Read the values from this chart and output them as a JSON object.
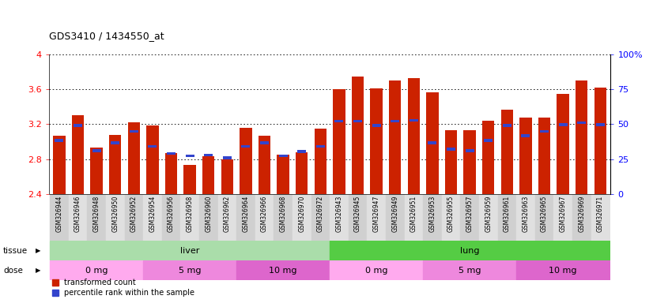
{
  "title": "GDS3410 / 1434550_at",
  "samples": [
    "GSM326944",
    "GSM326946",
    "GSM326948",
    "GSM326950",
    "GSM326952",
    "GSM326954",
    "GSM326956",
    "GSM326958",
    "GSM326960",
    "GSM326962",
    "GSM326964",
    "GSM326966",
    "GSM326968",
    "GSM326970",
    "GSM326972",
    "GSM326943",
    "GSM326945",
    "GSM326947",
    "GSM326949",
    "GSM326951",
    "GSM326953",
    "GSM326955",
    "GSM326957",
    "GSM326959",
    "GSM326961",
    "GSM326963",
    "GSM326965",
    "GSM326967",
    "GSM326969",
    "GSM326971"
  ],
  "red_values": [
    3.07,
    3.3,
    2.93,
    3.08,
    3.22,
    3.19,
    2.87,
    2.73,
    2.83,
    2.8,
    3.16,
    3.07,
    2.85,
    2.88,
    3.15,
    3.6,
    3.75,
    3.61,
    3.7,
    3.73,
    3.57,
    3.13,
    3.13,
    3.24,
    3.37,
    3.28,
    3.28,
    3.55,
    3.7,
    3.62
  ],
  "blue_values": [
    3.0,
    3.17,
    2.88,
    2.97,
    3.1,
    2.93,
    2.85,
    2.82,
    2.83,
    2.8,
    2.93,
    2.97,
    2.82,
    2.87,
    2.93,
    3.22,
    3.22,
    3.17,
    3.22,
    3.23,
    2.97,
    2.9,
    2.88,
    3.0,
    3.17,
    3.05,
    3.1,
    3.18,
    3.2,
    3.18
  ],
  "ymin": 2.4,
  "ymax": 4.0,
  "yticks": [
    2.4,
    2.8,
    3.2,
    3.6,
    4.0
  ],
  "ytick_labels": [
    "2.4",
    "2.8",
    "3.2",
    "3.6",
    "4"
  ],
  "right_yticks": [
    0,
    25,
    50,
    75,
    100
  ],
  "right_ytick_labels": [
    "0",
    "25",
    "50",
    "75",
    "100%"
  ],
  "bar_color": "#cc2200",
  "blue_color": "#3344cc",
  "tissue_groups": [
    {
      "label": "liver",
      "start": 0,
      "end": 14,
      "color": "#aaddaa"
    },
    {
      "label": "lung",
      "start": 15,
      "end": 29,
      "color": "#55cc44"
    }
  ],
  "dose_groups": [
    {
      "label": "0 mg",
      "start": 0,
      "end": 4,
      "color": "#ffaaee"
    },
    {
      "label": "5 mg",
      "start": 5,
      "end": 9,
      "color": "#ee88dd"
    },
    {
      "label": "10 mg",
      "start": 10,
      "end": 14,
      "color": "#dd66cc"
    },
    {
      "label": "0 mg",
      "start": 15,
      "end": 19,
      "color": "#ffaaee"
    },
    {
      "label": "5 mg",
      "start": 20,
      "end": 24,
      "color": "#ee88dd"
    },
    {
      "label": "10 mg",
      "start": 25,
      "end": 29,
      "color": "#dd66cc"
    }
  ],
  "xtick_bg_even": "#d0d0d0",
  "xtick_bg_odd": "#e0e0e0"
}
